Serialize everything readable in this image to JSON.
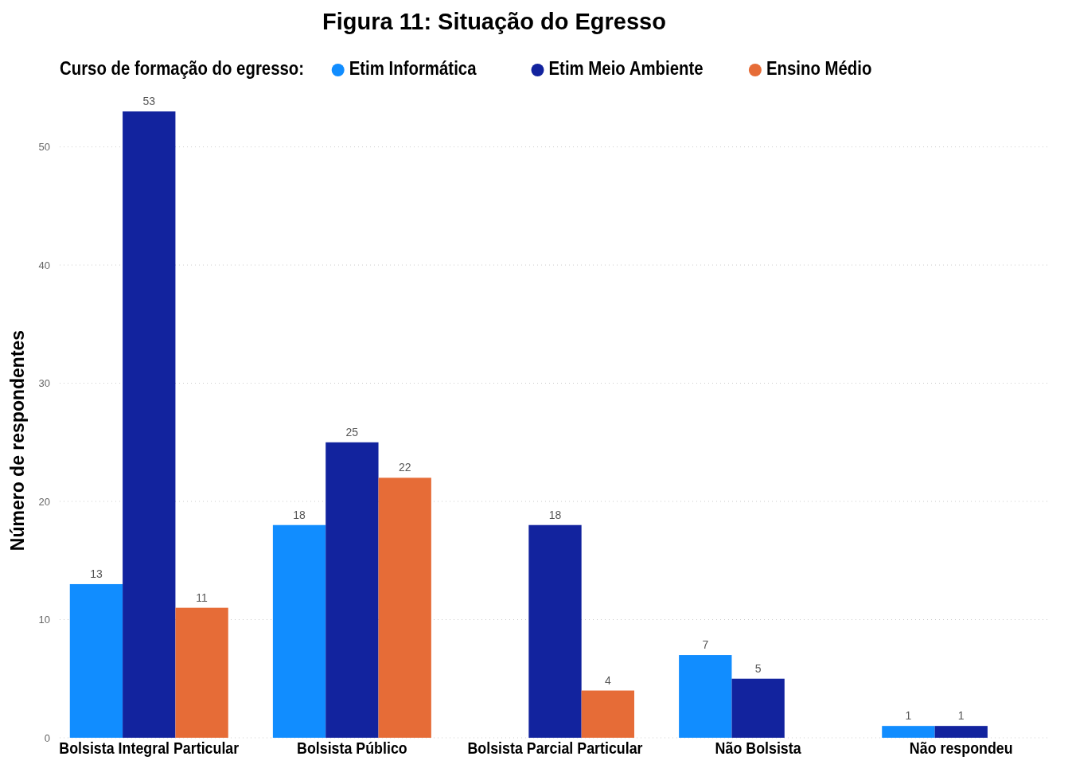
{
  "chart_data": {
    "type": "bar",
    "title": "Figura 11: Situação do Egresso",
    "ylabel": "Número de respondentes",
    "legend_title": "Curso de formação do egresso:",
    "categories": [
      "Bolsista Integral Particular",
      "Bolsista Público",
      "Bolsista Parcial Particular",
      "Não Bolsista",
      "Não respondeu"
    ],
    "series": [
      {
        "name": "Etim Informática",
        "color": "#118dff",
        "values": [
          13,
          18,
          null,
          7,
          1
        ]
      },
      {
        "name": "Etim Meio Ambiente",
        "color": "#12239e",
        "values": [
          53,
          25,
          18,
          5,
          1
        ]
      },
      {
        "name": "Ensino Médio",
        "color": "#e66c37",
        "values": [
          11,
          22,
          4,
          null,
          null
        ]
      }
    ],
    "ylim": [
      0,
      53
    ],
    "yticks": [
      0,
      10,
      20,
      30,
      40,
      50
    ],
    "grid": "y",
    "legend": "top left",
    "data_labels": true
  }
}
